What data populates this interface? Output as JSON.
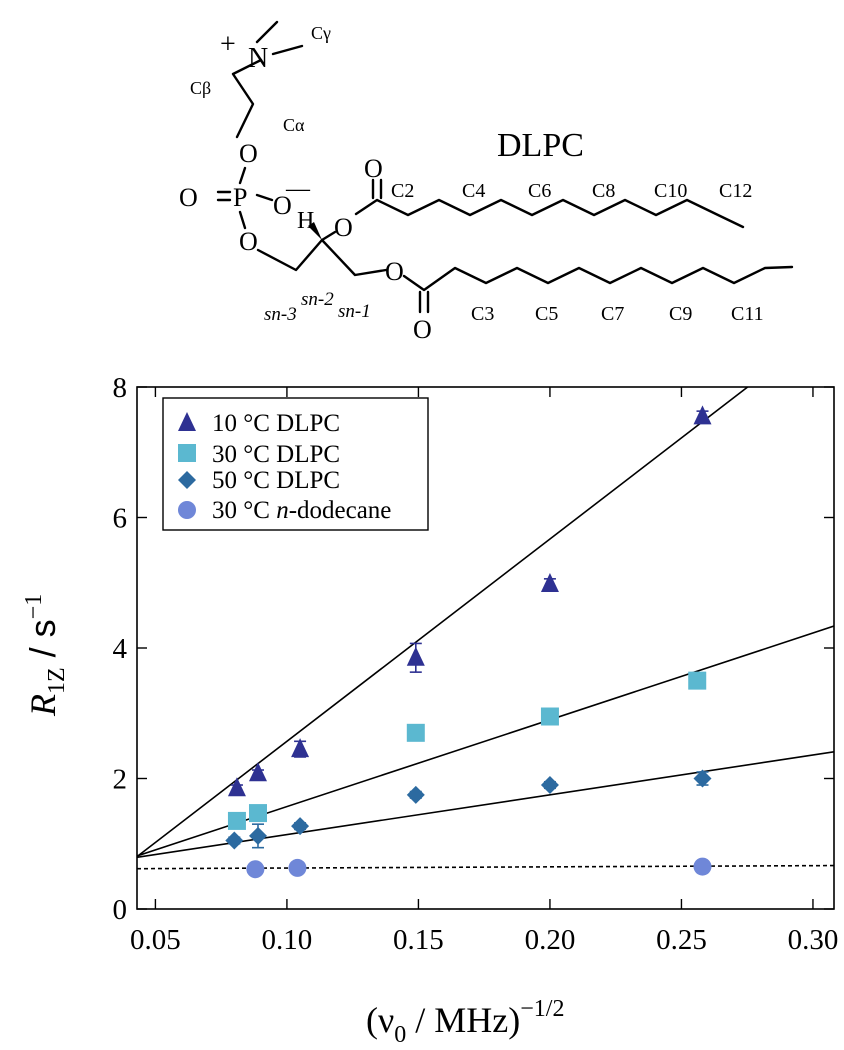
{
  "molecule": {
    "name": "DLPC",
    "plus_sign": "+",
    "nitrogen": "N",
    "c_gamma": "Cγ",
    "c_beta": "Cβ",
    "c_alpha": "Cα",
    "oxygen": "O",
    "phosphorus": "P",
    "minus_sign": "—",
    "hydrogen": "H",
    "sn1": "sn-1",
    "sn2": "sn-2",
    "sn3": "sn-3",
    "upper_chain_labels": [
      "C2",
      "C4",
      "C6",
      "C8",
      "C10",
      "C12"
    ],
    "lower_chain_labels": [
      "C3",
      "C5",
      "C7",
      "C9",
      "C11"
    ]
  },
  "chart_data": {
    "type": "scatter",
    "xlabel_main": "(ν",
    "xlabel_sub": "0",
    "xlabel_rest": " / MHz)",
    "xlabel_sup": "−1/2",
    "ylabel_main": "R",
    "ylabel_sub": "1Z",
    "ylabel_rest": " / s",
    "ylabel_sup": "−1",
    "xlim": [
      0.043,
      0.308
    ],
    "ylim": [
      0,
      8
    ],
    "xticks": [
      0.05,
      0.1,
      0.15,
      0.2,
      0.25,
      0.3
    ],
    "xtick_labels": [
      "0.05",
      "0.10",
      "0.15",
      "0.20",
      "0.25",
      "0.30"
    ],
    "yticks": [
      0,
      2,
      4,
      6,
      8
    ],
    "ytick_labels": [
      "0",
      "2",
      "4",
      "6",
      "8"
    ],
    "legend_position": "top-left",
    "series": [
      {
        "name": "10 °C DLPC",
        "legend_prefix": "10 °C DLPC",
        "legend_italic": "",
        "legend_suffix": "",
        "marker": "triangle",
        "color": "#2e3192",
        "x": [
          0.081,
          0.089,
          0.105,
          0.149,
          0.2,
          0.258
        ],
        "y": [
          1.85,
          2.08,
          2.45,
          3.85,
          4.98,
          7.55
        ],
        "yerr": [
          0.05,
          0.05,
          0.12,
          0.22,
          0.08,
          0.08
        ],
        "fit": {
          "slope": 31.0,
          "intercept": -0.53
        }
      },
      {
        "name": "30 °C DLPC",
        "legend_prefix": "30 °C DLPC",
        "legend_italic": "",
        "legend_suffix": "",
        "marker": "square",
        "color": "#5bb8d0",
        "x": [
          0.081,
          0.089,
          0.149,
          0.2,
          0.256
        ],
        "y": [
          1.35,
          1.47,
          2.7,
          2.95,
          3.5
        ],
        "yerr": [
          0.05,
          0.05,
          0.05,
          0.05,
          0.05
        ],
        "fit": {
          "slope": 13.3,
          "intercept": 0.24
        }
      },
      {
        "name": "50 °C DLPC",
        "legend_prefix": "50 °C DLPC",
        "legend_italic": "",
        "legend_suffix": "",
        "marker": "diamond",
        "color": "#2c6aa0",
        "x": [
          0.08,
          0.089,
          0.105,
          0.149,
          0.2,
          0.258
        ],
        "y": [
          1.05,
          1.12,
          1.27,
          1.75,
          1.9,
          2.0
        ],
        "yerr": [
          0.05,
          0.18,
          0.05,
          0.05,
          0.05,
          0.1
        ],
        "fit": {
          "slope": 6.1,
          "intercept": 0.53
        }
      },
      {
        "name": "30 °C n-dodecane",
        "legend_prefix": "30 °C ",
        "legend_italic": "n",
        "legend_suffix": "-dodecane",
        "marker": "circle",
        "color": "#6f87d8",
        "x": [
          0.088,
          0.104,
          0.258
        ],
        "y": [
          0.61,
          0.63,
          0.65
        ],
        "yerr": [
          0.0,
          0.0,
          0.0
        ],
        "fit": {
          "slope": 0.18,
          "intercept": 0.61,
          "dashed": true
        }
      }
    ]
  }
}
